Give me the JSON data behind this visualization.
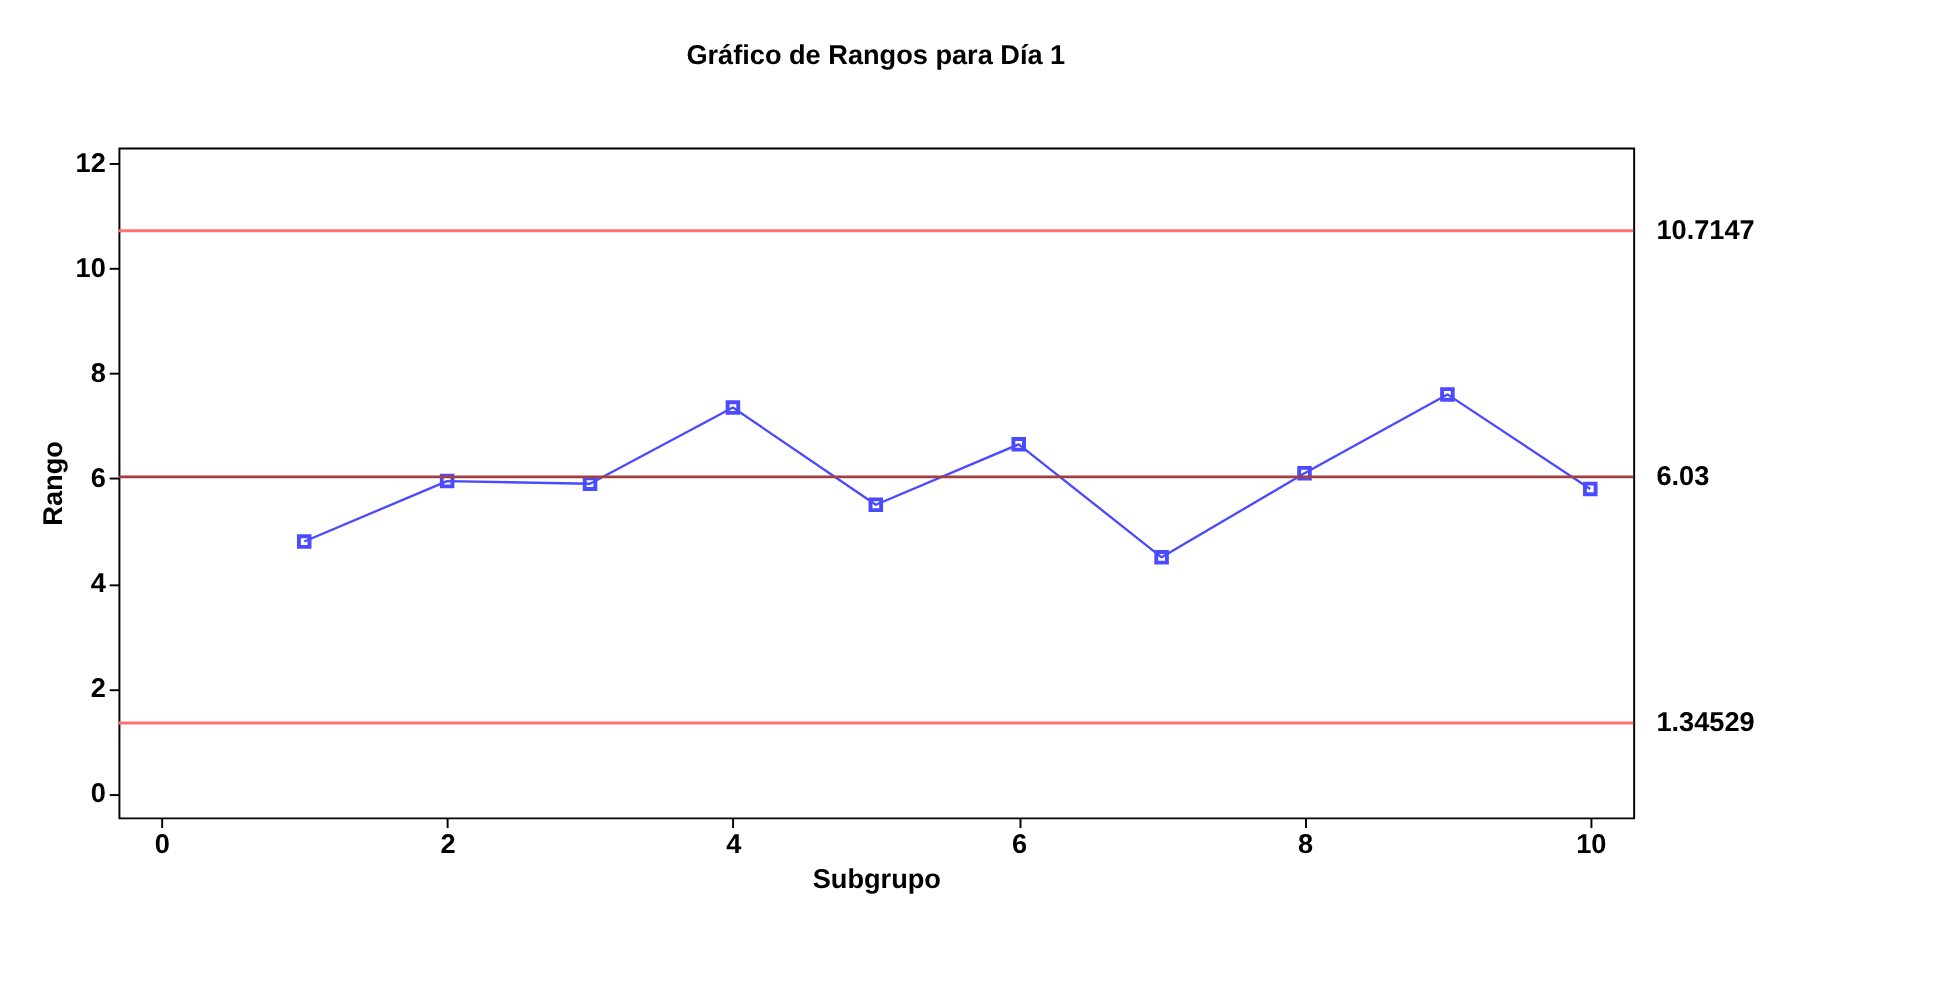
{
  "chart_data": {
    "type": "line",
    "title": "Gráfico de Rangos para Día 1",
    "xlabel": "Subgrupo",
    "ylabel": "Rango",
    "x": [
      1,
      2,
      3,
      4,
      5,
      6,
      7,
      8,
      9,
      10
    ],
    "series": [
      {
        "color": "#4a4aff",
        "values": [
          4.8,
          5.95,
          5.9,
          7.35,
          5.5,
          6.65,
          4.5,
          6.1,
          7.6,
          5.8
        ]
      }
    ],
    "xlim": [
      -0.3,
      10.3
    ],
    "xticks": [
      0,
      2,
      4,
      6,
      8,
      10
    ],
    "ylim": [
      -0.45,
      12.3
    ],
    "yticks": [
      0,
      2,
      4,
      6,
      8,
      10,
      12
    ],
    "ref_lines": [
      {
        "axis": "y",
        "value": 10.7147,
        "label": "10.7147",
        "color": "#ff7070"
      },
      {
        "axis": "y",
        "value": 6.03,
        "label": "6.03",
        "color": "#a04040"
      },
      {
        "axis": "y",
        "value": 1.34529,
        "label": "1.34529",
        "color": "#ff7070"
      }
    ],
    "marker": "square",
    "line_style": "solid",
    "grid": false
  }
}
